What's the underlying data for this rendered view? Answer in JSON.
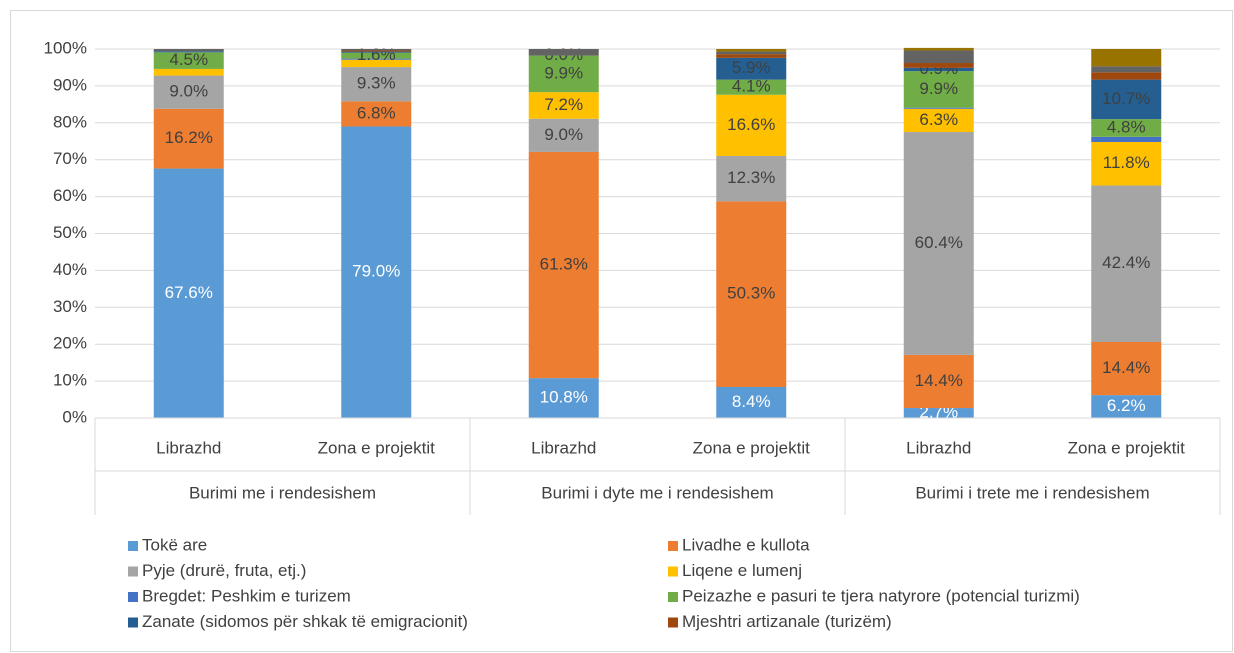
{
  "chart_data": {
    "type": "stacked_bar",
    "categories": [
      "Librazhd",
      "Zona e projektit",
      "Librazhd",
      "Zona e projektit",
      "Librazhd",
      "Zona e projektit"
    ],
    "groups": [
      "Burimi me i rendesishem",
      "Burimi i dyte me i rendesishem",
      "Burimi i trete me i rendesishem"
    ],
    "ylim": [
      0,
      100
    ],
    "yticks": [
      {
        "value": 0,
        "label": "0%"
      },
      {
        "value": 10,
        "label": "10%"
      },
      {
        "value": 20,
        "label": "20%"
      },
      {
        "value": 30,
        "label": "30%"
      },
      {
        "value": 40,
        "label": "40%"
      },
      {
        "value": 50,
        "label": "50%"
      },
      {
        "value": 60,
        "label": "60%"
      },
      {
        "value": 70,
        "label": "70%"
      },
      {
        "value": 80,
        "label": "80%"
      },
      {
        "value": 90,
        "label": "90%"
      },
      {
        "value": 100,
        "label": "100%"
      }
    ],
    "grid": true,
    "legend": "bottom",
    "series": [
      {
        "name": "Tokë are",
        "color": "#5b9bd5",
        "values": [
          67.6,
          79.0,
          10.8,
          8.4,
          2.7,
          6.2
        ],
        "value_labels": [
          "67.6%",
          "79.0%",
          "10.8%",
          "8.4%",
          "2.7%",
          "6.2%"
        ]
      },
      {
        "name": "Livadhe e kullota",
        "color": "#ed7d31",
        "values": [
          16.2,
          6.8,
          61.3,
          50.3,
          14.4,
          14.4
        ],
        "value_labels": [
          "16.2%",
          "6.8%",
          "61.3%",
          "50.3%",
          "14.4%",
          "14.4%"
        ]
      },
      {
        "name": "Pyje (drurë, fruta, etj.)",
        "color": "#a5a5a5",
        "values": [
          9.0,
          9.3,
          9.0,
          12.3,
          60.4,
          42.4
        ],
        "value_labels": [
          "9.0%",
          "9.3%",
          "9.0%",
          "12.3%",
          "60.4%",
          "42.4%"
        ]
      },
      {
        "name": "Liqene e lumenj",
        "color": "#ffc000",
        "values": [
          1.8,
          2.0,
          7.2,
          16.6,
          6.3,
          11.8
        ],
        "value_labels": [
          null,
          null,
          "7.2%",
          "16.6%",
          "6.3%",
          "11.8%"
        ]
      },
      {
        "name": "Bregdet: Peshkim e turizem",
        "color": "#4472c4",
        "values": [
          0,
          0.3,
          0,
          0,
          0.3,
          1.4
        ],
        "value_labels": [
          null,
          null,
          null,
          null,
          null,
          null
        ]
      },
      {
        "name": "Peizazhe e pasuri te tjera natyrore (potencial turizmi)",
        "color": "#70ad47",
        "values": [
          4.5,
          1.6,
          9.9,
          4.1,
          9.9,
          4.8
        ],
        "value_labels": [
          "4.5%",
          "1.6%",
          "9.9%",
          "4.1%",
          "9.9%",
          "4.8%"
        ]
      },
      {
        "name": "Zanate (sidomos për shkak të emigracionit)",
        "color": "#255e91",
        "values": [
          0.3,
          0.3,
          0.0,
          5.9,
          0.9,
          10.7
        ],
        "value_labels": [
          null,
          null,
          "0.0%",
          "5.9%",
          "0.9%",
          "10.7%"
        ]
      },
      {
        "name": "Mjeshtri artizanale (turizëm)",
        "color": "#9e480e",
        "values": [
          0,
          0.3,
          0,
          1.0,
          1.3,
          2.0
        ],
        "value_labels": [
          null,
          null,
          null,
          null,
          null,
          null
        ]
      },
      {
        "color": "#636363",
        "values": [
          0.6,
          0.4,
          1.8,
          0.7,
          3.4,
          1.6
        ]
      },
      {
        "color": "#997300",
        "values": [
          0,
          0,
          0,
          0.7,
          0.7,
          4.7
        ]
      }
    ]
  }
}
